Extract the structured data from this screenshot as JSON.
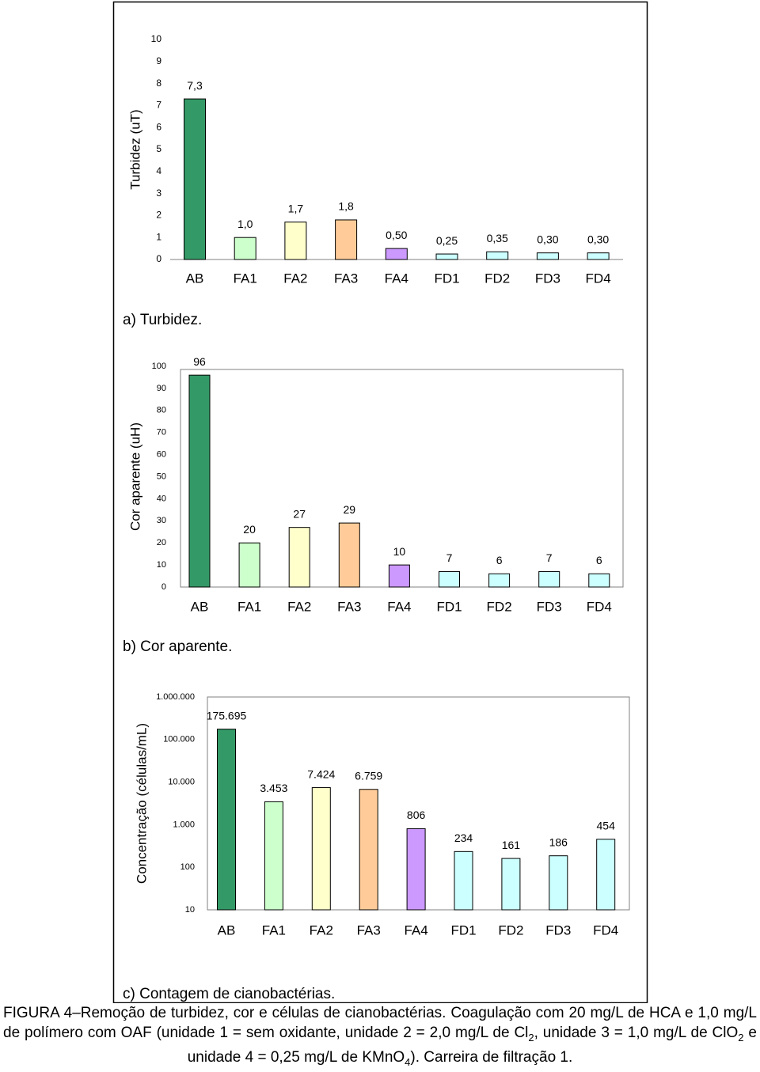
{
  "chart_data": [
    {
      "type": "bar",
      "caption": "a) Turbidez.",
      "y_label": "Turbidez (uT)",
      "categories": [
        "AB",
        "FA1",
        "FA2",
        "FA3",
        "FA4",
        "FD1",
        "FD2",
        "FD3",
        "FD4"
      ],
      "values": [
        7.3,
        1.0,
        1.7,
        1.8,
        0.5,
        0.25,
        0.35,
        0.3,
        0.3
      ],
      "value_labels": [
        "7,3",
        "1,0",
        "1,7",
        "1,8",
        "0,50",
        "0,25",
        "0,35",
        "0,30",
        "0,30"
      ],
      "colors": [
        "#339966",
        "#ccffcc",
        "#ffffcc",
        "#ffcc99",
        "#cc99ff",
        "#ccffff",
        "#ccffff",
        "#ccffff",
        "#ccffff"
      ],
      "ylim": [
        0,
        10
      ],
      "yticks": [
        0,
        1,
        2,
        3,
        4,
        5,
        6,
        7,
        8,
        9,
        10
      ],
      "frame": false
    },
    {
      "type": "bar",
      "caption": "b) Cor aparente.",
      "y_label": "Cor aparente (uH)",
      "categories": [
        "AB",
        "FA1",
        "FA2",
        "FA3",
        "FA4",
        "FD1",
        "FD2",
        "FD3",
        "FD4"
      ],
      "values": [
        96,
        20,
        27,
        29,
        10,
        7,
        6,
        7,
        6
      ],
      "colors": [
        "#339966",
        "#ccffcc",
        "#ffffcc",
        "#ffcc99",
        "#cc99ff",
        "#ccffff",
        "#ccffff",
        "#ccffff",
        "#ccffff"
      ],
      "ylim": [
        0,
        100
      ],
      "yticks": [
        0,
        10,
        20,
        30,
        40,
        50,
        60,
        70,
        80,
        90,
        100
      ],
      "frame": true
    },
    {
      "type": "bar",
      "caption": "c) Contagem de cianobactérias.",
      "y_label": "Concentração (células/mL)",
      "categories": [
        "AB",
        "FA1",
        "FA2",
        "FA3",
        "FA4",
        "FD1",
        "FD2",
        "FD3",
        "FD4"
      ],
      "values": [
        175695,
        3453,
        7424,
        6759,
        806,
        234,
        161,
        186,
        454
      ],
      "value_labels": [
        "175.695",
        "3.453",
        "7.424",
        "6.759",
        "806",
        "234",
        "161",
        "186",
        "454"
      ],
      "colors": [
        "#339966",
        "#ccffcc",
        "#ffffcc",
        "#ffcc99",
        "#cc99ff",
        "#ccffff",
        "#ccffff",
        "#ccffff",
        "#ccffff"
      ],
      "log_scale": true,
      "ylim": [
        10,
        1000000
      ],
      "yticks": [
        10,
        100,
        {
          "value": 1000,
          "label": "1.000"
        },
        {
          "value": 10000,
          "label": "10.000"
        },
        {
          "value": 100000,
          "label": "100.000"
        },
        {
          "value": 1000000,
          "label": "1.000.000"
        }
      ],
      "frame": true
    }
  ],
  "figure_caption": [
    {
      "text": "FIGURA 4–Remoção de turbidez, cor e células de cianobactérias. Coagulação com 20 mg/L de HCA e 1,0 mg/L de polímero com OAF (unidade 1 = sem oxidante, unidade 2 = 2,0 mg/L de Cl"
    },
    {
      "text": "2",
      "subscript": true
    },
    {
      "text": ", unidade 3 = 1,0 mg/L de ClO"
    },
    {
      "text": "2",
      "subscript": true
    },
    {
      "text": " e unidade 4 = 0,25 mg/L de KMnO"
    },
    {
      "text": "4",
      "subscript": true
    },
    {
      "text": "). Carreira de filtração 1."
    }
  ]
}
